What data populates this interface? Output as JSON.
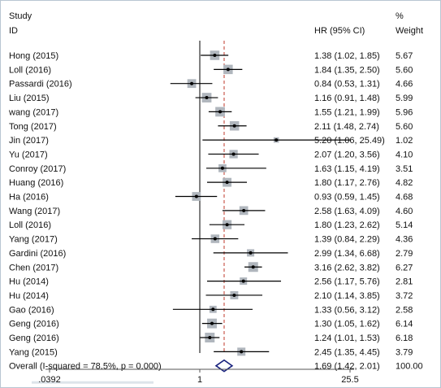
{
  "header": {
    "study": "Study",
    "id": "ID",
    "hr": "HR (95% CI)",
    "pct": "%",
    "weight": "Weight"
  },
  "chart_data": {
    "type": "forest",
    "title": "",
    "x_scale": "log",
    "x_ticks": [
      {
        "value": 0.0392,
        "label": ".0392"
      },
      {
        "value": 1,
        "label": "1"
      },
      {
        "value": 25.5,
        "label": "25.5"
      }
    ],
    "xlim": [
      0.0392,
      25.5
    ],
    "null_line": 1,
    "overall_line": 1.69,
    "rows": [
      {
        "study": "Hong (2015)",
        "hr": 1.38,
        "lo": 1.02,
        "hi": 1.85,
        "ci": "1.38 (1.02, 1.85)",
        "weight": "5.67"
      },
      {
        "study": "Loll (2016)",
        "hr": 1.84,
        "lo": 1.35,
        "hi": 2.5,
        "ci": "1.84 (1.35, 2.50)",
        "weight": "5.60"
      },
      {
        "study": "Passardi (2016)",
        "hr": 0.84,
        "lo": 0.53,
        "hi": 1.31,
        "ci": "0.84 (0.53, 1.31)",
        "weight": "4.66"
      },
      {
        "study": "Liu (2015)",
        "hr": 1.16,
        "lo": 0.91,
        "hi": 1.48,
        "ci": "1.16 (0.91, 1.48)",
        "weight": "5.99"
      },
      {
        "study": "wang (2017)",
        "hr": 1.55,
        "lo": 1.21,
        "hi": 1.99,
        "ci": "1.55 (1.21, 1.99)",
        "weight": "5.96"
      },
      {
        "study": "Tong (2017)",
        "hr": 2.11,
        "lo": 1.48,
        "hi": 2.74,
        "ci": "2.11 (1.48, 2.74)",
        "weight": "5.60"
      },
      {
        "study": "Jin (2017)",
        "hr": 5.2,
        "lo": 1.06,
        "hi": 25.49,
        "ci": "5.20 (1.06, 25.49)",
        "weight": "1.02"
      },
      {
        "study": "Yu (2017)",
        "hr": 2.07,
        "lo": 1.2,
        "hi": 3.56,
        "ci": "2.07 (1.20, 3.56)",
        "weight": "4.10"
      },
      {
        "study": "Conroy (2017)",
        "hr": 1.63,
        "lo": 1.15,
        "hi": 4.19,
        "ci": "1.63 (1.15, 4.19)",
        "weight": "3.51"
      },
      {
        "study": "Huang (2016)",
        "hr": 1.8,
        "lo": 1.17,
        "hi": 2.76,
        "ci": "1.80 (1.17, 2.76)",
        "weight": "4.82"
      },
      {
        "study": "Ha (2016)",
        "hr": 0.93,
        "lo": 0.59,
        "hi": 1.45,
        "ci": "0.93 (0.59, 1.45)",
        "weight": "4.68"
      },
      {
        "study": "Wang (2017)",
        "hr": 2.58,
        "lo": 1.63,
        "hi": 4.09,
        "ci": "2.58 (1.63, 4.09)",
        "weight": "4.60"
      },
      {
        "study": "Loll (2016)",
        "hr": 1.8,
        "lo": 1.23,
        "hi": 2.62,
        "ci": "1.80 (1.23, 2.62)",
        "weight": "5.14"
      },
      {
        "study": "Yang  (2017)",
        "hr": 1.39,
        "lo": 0.84,
        "hi": 2.29,
        "ci": "1.39 (0.84, 2.29)",
        "weight": "4.36"
      },
      {
        "study": "Gardini (2016)",
        "hr": 2.99,
        "lo": 1.34,
        "hi": 6.68,
        "ci": "2.99 (1.34, 6.68)",
        "weight": "2.79"
      },
      {
        "study": "Chen (2017)",
        "hr": 3.16,
        "lo": 2.62,
        "hi": 3.82,
        "ci": "3.16 (2.62, 3.82)",
        "weight": "6.27"
      },
      {
        "study": "Hu (2014)",
        "hr": 2.56,
        "lo": 1.17,
        "hi": 5.76,
        "ci": "2.56 (1.17, 5.76)",
        "weight": "2.81"
      },
      {
        "study": "Hu (2014)",
        "hr": 2.1,
        "lo": 1.14,
        "hi": 3.85,
        "ci": "2.10 (1.14, 3.85)",
        "weight": "3.72"
      },
      {
        "study": "Gao (2016)",
        "hr": 1.33,
        "lo": 0.56,
        "hi": 3.12,
        "ci": "1.33 (0.56, 3.12)",
        "weight": "2.58"
      },
      {
        "study": "Geng (2016)",
        "hr": 1.3,
        "lo": 1.05,
        "hi": 1.62,
        "ci": "1.30 (1.05, 1.62)",
        "weight": "6.14"
      },
      {
        "study": "Geng (2016)",
        "hr": 1.24,
        "lo": 1.01,
        "hi": 1.53,
        "ci": "1.24 (1.01, 1.53)",
        "weight": "6.18"
      },
      {
        "study": "Yang (2015)",
        "hr": 2.45,
        "lo": 1.35,
        "hi": 4.45,
        "ci": "2.45 (1.35, 4.45)",
        "weight": "3.79"
      }
    ],
    "overall": {
      "label": "Overall  (I-squared = 78.5%, p = 0.000)",
      "hr": 1.69,
      "lo": 1.42,
      "hi": 2.01,
      "ci": "1.69 (1.42, 2.01)",
      "weight": "100.00"
    },
    "colors": {
      "line": "#000000",
      "diamond": "#1a237e",
      "box": "#b0b6bd",
      "dashed": "#c0392b"
    }
  }
}
